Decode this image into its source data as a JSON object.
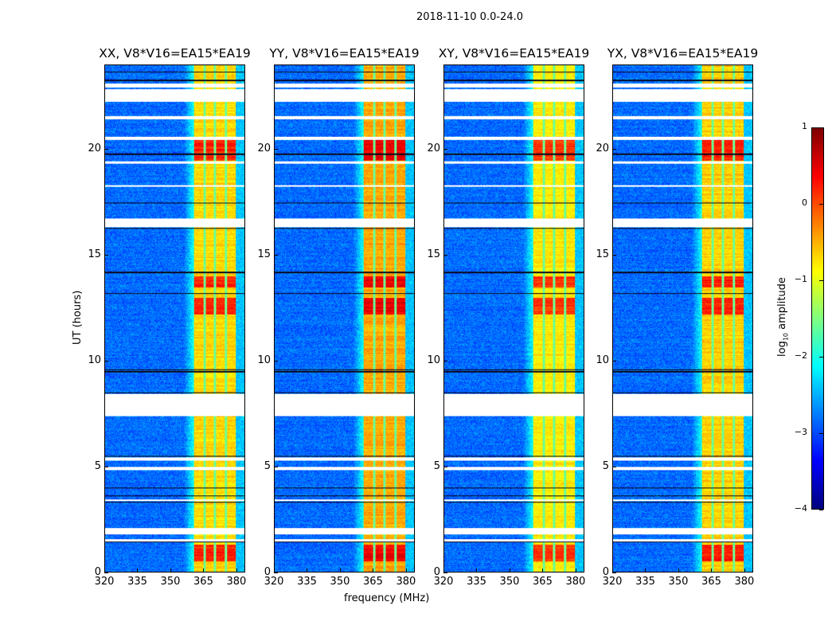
{
  "figure": {
    "suptitle": "2018-11-10 0.0-24.0"
  },
  "chart_data": {
    "type": "heatmap",
    "xlabel": "frequency (MHz)",
    "ylabel": "UT (hours)",
    "xlim": [
      320,
      384
    ],
    "ylim": [
      0,
      24
    ],
    "xticks": [
      "320",
      "335",
      "350",
      "365",
      "380"
    ],
    "xtick_values": [
      320,
      335,
      350,
      365,
      380
    ],
    "yticks": [
      "0",
      "5",
      "10",
      "15",
      "20"
    ],
    "ytick_values": [
      0,
      5,
      10,
      15,
      20
    ],
    "panels": [
      {
        "title": "XX, V8*V16=EA15*EA19",
        "band_boost": 0.0
      },
      {
        "title": "YY, V8*V16=EA15*EA19",
        "band_boost": 0.25
      },
      {
        "title": "XY, V8*V16=EA15*EA19",
        "band_boost": -0.1
      },
      {
        "title": "YX, V8*V16=EA15*EA19",
        "band_boost": 0.05
      }
    ],
    "rfi_band_mhz": [
      360.5,
      380
    ],
    "band_channel_edges_mhz": [
      365.5,
      370.2,
      375.3
    ],
    "flagged_gaps_hours": [
      [
        22.95,
        23.15
      ],
      [
        22.3,
        22.9
      ],
      [
        21.45,
        21.6
      ],
      [
        20.5,
        20.65
      ],
      [
        19.35,
        19.45
      ],
      [
        18.25,
        18.35
      ],
      [
        16.35,
        16.75
      ],
      [
        7.4,
        8.45
      ],
      [
        5.3,
        5.45
      ],
      [
        4.85,
        5.0
      ],
      [
        3.35,
        3.45
      ],
      [
        1.8,
        2.1
      ],
      [
        1.45,
        1.55
      ]
    ],
    "dark_lines_hours": [
      1.45,
      3.3,
      3.6,
      4.0,
      5.5,
      9.5,
      9.6,
      13.2,
      14.2,
      16.3,
      17.5,
      19.8,
      23.3,
      23.7,
      8.5
    ],
    "bright_intervals_hours": [
      [
        0.5,
        1.3
      ],
      [
        13.5,
        14.0
      ],
      [
        19.5,
        20.5
      ],
      [
        12.2,
        13.0
      ]
    ],
    "colorbar": {
      "label": "log10 amplitude",
      "label_main": "log",
      "label_sub": "10",
      "label_rest": " amplitude",
      "range": [
        -4,
        1
      ],
      "ticks": [
        "1",
        "0",
        "−1",
        "−2",
        "−3",
        "−4"
      ],
      "tick_values": [
        1,
        0,
        -1,
        -2,
        -3,
        -4
      ],
      "colormap": "jet"
    }
  }
}
